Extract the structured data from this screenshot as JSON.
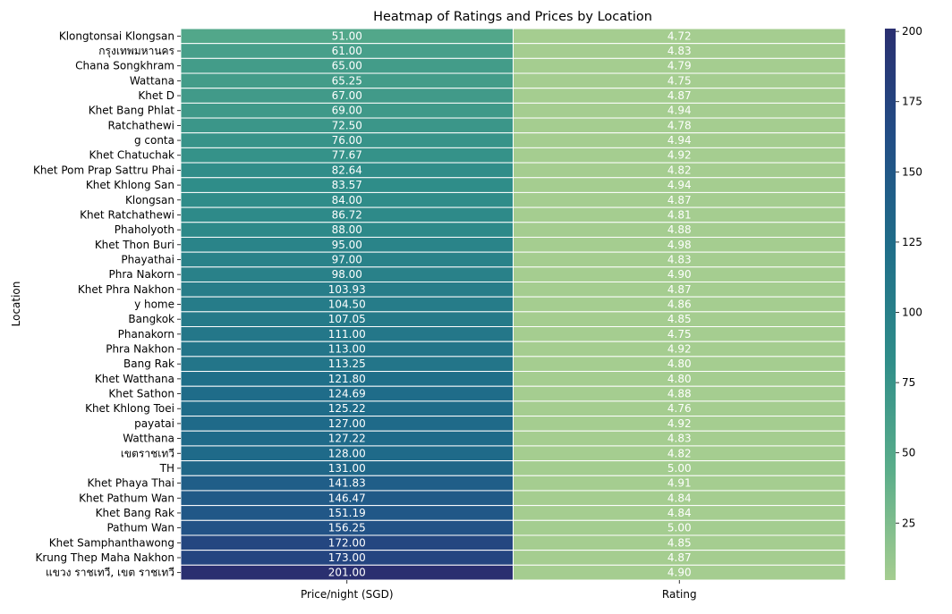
{
  "chart_data": {
    "type": "heatmap",
    "title": "Heatmap of Ratings and Prices by Location",
    "ylabel": "Location",
    "xlabel": "",
    "columns": [
      "Price/night (SGD)",
      "Rating"
    ],
    "rows": [
      {
        "location": "Klongtonsai Klongsan",
        "price": 51.0,
        "price_label": "51.00",
        "rating": 4.72,
        "rating_label": "4.72"
      },
      {
        "location": "กรุงเทพมหานคร",
        "price": 61.0,
        "price_label": "61.00",
        "rating": 4.83,
        "rating_label": "4.83"
      },
      {
        "location": "Chana Songkhram",
        "price": 65.0,
        "price_label": "65.00",
        "rating": 4.79,
        "rating_label": "4.79"
      },
      {
        "location": "Wattana",
        "price": 65.25,
        "price_label": "65.25",
        "rating": 4.75,
        "rating_label": "4.75"
      },
      {
        "location": "Khet D",
        "price": 67.0,
        "price_label": "67.00",
        "rating": 4.87,
        "rating_label": "4.87"
      },
      {
        "location": "Khet Bang Phlat",
        "price": 69.0,
        "price_label": "69.00",
        "rating": 4.94,
        "rating_label": "4.94"
      },
      {
        "location": "Ratchathewi",
        "price": 72.5,
        "price_label": "72.50",
        "rating": 4.78,
        "rating_label": "4.78"
      },
      {
        "location": "g conta",
        "price": 76.0,
        "price_label": "76.00",
        "rating": 4.94,
        "rating_label": "4.94"
      },
      {
        "location": "Khet Chatuchak",
        "price": 77.67,
        "price_label": "77.67",
        "rating": 4.92,
        "rating_label": "4.92"
      },
      {
        "location": "Khet Pom Prap Sattru Phai",
        "price": 82.64,
        "price_label": "82.64",
        "rating": 4.82,
        "rating_label": "4.82"
      },
      {
        "location": "Khet Khlong San",
        "price": 83.57,
        "price_label": "83.57",
        "rating": 4.94,
        "rating_label": "4.94"
      },
      {
        "location": "Klongsan",
        "price": 84.0,
        "price_label": "84.00",
        "rating": 4.87,
        "rating_label": "4.87"
      },
      {
        "location": "Khet Ratchathewi",
        "price": 86.72,
        "price_label": "86.72",
        "rating": 4.81,
        "rating_label": "4.81"
      },
      {
        "location": "Phaholyoth",
        "price": 88.0,
        "price_label": "88.00",
        "rating": 4.88,
        "rating_label": "4.88"
      },
      {
        "location": "Khet Thon Buri",
        "price": 95.0,
        "price_label": "95.00",
        "rating": 4.98,
        "rating_label": "4.98"
      },
      {
        "location": "Phayathai",
        "price": 97.0,
        "price_label": "97.00",
        "rating": 4.83,
        "rating_label": "4.83"
      },
      {
        "location": "Phra Nakorn",
        "price": 98.0,
        "price_label": "98.00",
        "rating": 4.9,
        "rating_label": "4.90"
      },
      {
        "location": "Khet Phra Nakhon",
        "price": 103.93,
        "price_label": "103.93",
        "rating": 4.87,
        "rating_label": "4.87"
      },
      {
        "location": "y home",
        "price": 104.5,
        "price_label": "104.50",
        "rating": 4.86,
        "rating_label": "4.86"
      },
      {
        "location": "Bangkok",
        "price": 107.05,
        "price_label": "107.05",
        "rating": 4.85,
        "rating_label": "4.85"
      },
      {
        "location": "Phanakorn",
        "price": 111.0,
        "price_label": "111.00",
        "rating": 4.75,
        "rating_label": "4.75"
      },
      {
        "location": "Phra Nakhon",
        "price": 113.0,
        "price_label": "113.00",
        "rating": 4.92,
        "rating_label": "4.92"
      },
      {
        "location": "Bang Rak",
        "price": 113.25,
        "price_label": "113.25",
        "rating": 4.8,
        "rating_label": "4.80"
      },
      {
        "location": "Khet Watthana",
        "price": 121.8,
        "price_label": "121.80",
        "rating": 4.8,
        "rating_label": "4.80"
      },
      {
        "location": "Khet Sathon",
        "price": 124.69,
        "price_label": "124.69",
        "rating": 4.88,
        "rating_label": "4.88"
      },
      {
        "location": "Khet Khlong Toei",
        "price": 125.22,
        "price_label": "125.22",
        "rating": 4.76,
        "rating_label": "4.76"
      },
      {
        "location": "payatai",
        "price": 127.0,
        "price_label": "127.00",
        "rating": 4.92,
        "rating_label": "4.92"
      },
      {
        "location": "Watthana",
        "price": 127.22,
        "price_label": "127.22",
        "rating": 4.83,
        "rating_label": "4.83"
      },
      {
        "location": "เขตราชเทวี",
        "price": 128.0,
        "price_label": "128.00",
        "rating": 4.82,
        "rating_label": "4.82"
      },
      {
        "location": "TH",
        "price": 131.0,
        "price_label": "131.00",
        "rating": 5.0,
        "rating_label": "5.00"
      },
      {
        "location": "Khet Phaya Thai",
        "price": 141.83,
        "price_label": "141.83",
        "rating": 4.91,
        "rating_label": "4.91"
      },
      {
        "location": "Khet Pathum Wan",
        "price": 146.47,
        "price_label": "146.47",
        "rating": 4.84,
        "rating_label": "4.84"
      },
      {
        "location": "Khet Bang Rak",
        "price": 151.19,
        "price_label": "151.19",
        "rating": 4.84,
        "rating_label": "4.84"
      },
      {
        "location": "Pathum Wan",
        "price": 156.25,
        "price_label": "156.25",
        "rating": 5.0,
        "rating_label": "5.00"
      },
      {
        "location": "Khet Samphanthawong",
        "price": 172.0,
        "price_label": "172.00",
        "rating": 4.85,
        "rating_label": "4.85"
      },
      {
        "location": "Krung Thep Maha Nakhon",
        "price": 173.0,
        "price_label": "173.00",
        "rating": 4.87,
        "rating_label": "4.87"
      },
      {
        "location": "แขวง ราชเทวี, เขต ราชเทวี",
        "price": 201.0,
        "price_label": "201.00",
        "rating": 4.9,
        "rating_label": "4.90"
      }
    ],
    "colorbar": {
      "ticks": [
        "25",
        "50",
        "75",
        "100",
        "125",
        "150",
        "175",
        "200"
      ],
      "range": [
        4.72,
        201.0
      ],
      "colormap": "crest",
      "stops": [
        "#a5cd90",
        "#5aad8a",
        "#2f8d89",
        "#1f6e89",
        "#224e86",
        "#2a2f70"
      ]
    },
    "grid": true,
    "legend": "right colorbar"
  }
}
